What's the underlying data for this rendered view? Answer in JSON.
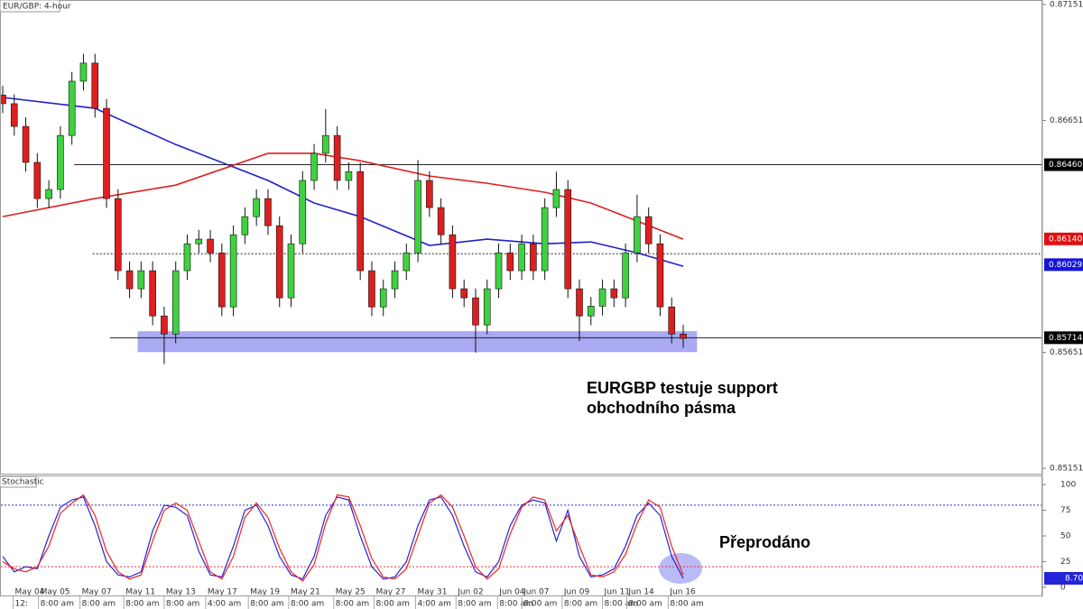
{
  "chart_data": [
    {
      "type": "candlestick",
      "title": "EUR/GBP: 4-hour",
      "open": [
        0.8676,
        0.86723,
        0.86625,
        0.8647,
        0.86314,
        0.86353,
        0.86586,
        0.8682,
        0.86898,
        0.86703,
        0.86314,
        0.86003,
        0.85925,
        0.86003,
        0.85808,
        0.8573,
        0.86003,
        0.86119,
        0.86139,
        0.8608,
        0.85847,
        0.86158,
        0.86236,
        0.86314,
        0.86197,
        0.85886,
        0.86119,
        0.86392,
        0.86509,
        0.86586,
        0.86392,
        0.8643,
        0.86003,
        0.85847,
        0.85925,
        0.86003,
        0.8608,
        0.86392,
        0.86275,
        0.86158,
        0.85925,
        0.85886,
        0.85769,
        0.85925,
        0.8608,
        0.86003,
        0.86119,
        0.86003,
        0.86275,
        0.86353,
        0.85925,
        0.85808,
        0.8585,
        0.85925,
        0.85886,
        0.8608,
        0.86236,
        0.86119,
        0.85847,
        0.8573
      ],
      "high": [
        0.868,
        0.86763,
        0.86665,
        0.8651,
        0.86393,
        0.86626,
        0.8686,
        0.86938,
        0.86938,
        0.86743,
        0.86354,
        0.86043,
        0.86043,
        0.86043,
        0.85848,
        0.86043,
        0.86159,
        0.86179,
        0.86179,
        0.8612,
        0.86198,
        0.86276,
        0.86354,
        0.86354,
        0.86237,
        0.86159,
        0.86432,
        0.86549,
        0.867,
        0.86626,
        0.8647,
        0.8647,
        0.86043,
        0.85965,
        0.86043,
        0.8612,
        0.8648,
        0.86432,
        0.86315,
        0.86198,
        0.85965,
        0.85926,
        0.85965,
        0.8612,
        0.8612,
        0.86159,
        0.86159,
        0.86315,
        0.8643,
        0.86393,
        0.85965,
        0.8589,
        0.85965,
        0.85965,
        0.8612,
        0.8633,
        0.86276,
        0.86159,
        0.85887,
        0.8577
      ],
      "low": [
        0.86683,
        0.86585,
        0.8643,
        0.86274,
        0.86274,
        0.86313,
        0.86546,
        0.8678,
        0.86663,
        0.86274,
        0.85963,
        0.85885,
        0.85885,
        0.85768,
        0.856,
        0.8569,
        0.85963,
        0.86079,
        0.8604,
        0.85807,
        0.85807,
        0.86118,
        0.86196,
        0.86157,
        0.85846,
        0.85846,
        0.86079,
        0.86352,
        0.86469,
        0.86352,
        0.86352,
        0.85963,
        0.85807,
        0.85807,
        0.85885,
        0.85963,
        0.8604,
        0.86235,
        0.86118,
        0.85885,
        0.85846,
        0.8565,
        0.85729,
        0.85885,
        0.85963,
        0.85963,
        0.85963,
        0.85963,
        0.86235,
        0.85885,
        0.857,
        0.85768,
        0.8581,
        0.85846,
        0.85846,
        0.8604,
        0.86079,
        0.85807,
        0.8569,
        0.85671
      ],
      "close": [
        0.86723,
        0.86625,
        0.8647,
        0.86314,
        0.86353,
        0.86586,
        0.8682,
        0.86898,
        0.86703,
        0.86314,
        0.86003,
        0.85925,
        0.86003,
        0.85808,
        0.8573,
        0.86003,
        0.86119,
        0.86139,
        0.8608,
        0.85847,
        0.86158,
        0.86236,
        0.86314,
        0.86197,
        0.85886,
        0.86119,
        0.86392,
        0.86509,
        0.86586,
        0.86392,
        0.8643,
        0.86003,
        0.85847,
        0.85925,
        0.86003,
        0.8608,
        0.86392,
        0.86275,
        0.86158,
        0.85925,
        0.85886,
        0.85769,
        0.85925,
        0.8608,
        0.86003,
        0.86119,
        0.86003,
        0.86275,
        0.86353,
        0.85925,
        0.85808,
        0.8585,
        0.85925,
        0.85886,
        0.8608,
        0.86236,
        0.86119,
        0.85847,
        0.8573,
        0.85711
      ],
      "up_color": "#3fd13f",
      "down_color": "#dd1f1f",
      "ylim": [
        0.85128,
        0.8717
      ],
      "yticks": [
        0.87151,
        0.86651,
        0.85651,
        0.85151
      ],
      "moving_averages": [
        {
          "color": "#1f1fcc",
          "x": [
            0,
            8,
            15,
            23,
            27,
            31,
            37,
            42,
            47,
            51,
            55,
            59
          ],
          "values": [
            0.8675,
            0.86703,
            0.86547,
            0.86392,
            0.86295,
            0.86236,
            0.86112,
            0.86139,
            0.86119,
            0.86127,
            0.8608,
            0.86022
          ]
        },
        {
          "color": "#e01f1f",
          "x": [
            0,
            8,
            15,
            23,
            27,
            31,
            37,
            42,
            47,
            51,
            55,
            59
          ],
          "values": [
            0.86236,
            0.86314,
            0.86372,
            0.86509,
            0.86509,
            0.86477,
            0.86411,
            0.8638,
            0.86341,
            0.86295,
            0.86217,
            0.86139
          ]
        }
      ],
      "levels": [
        {
          "value": 0.8646,
          "style": "solid",
          "from": 6.2
        },
        {
          "value": 0.86076,
          "style": "dotted",
          "from": 7.8
        },
        {
          "value": 0.85714,
          "style": "solid",
          "from": 9.3
        }
      ],
      "support_band": {
        "y": [
          0.85742,
          0.85652
        ],
        "x": [
          11.7,
          60.2
        ],
        "color": "#8c8cf0"
      },
      "price_tags": [
        {
          "value": 0.8646,
          "label": "0.86460",
          "color": "#000000"
        },
        {
          "value": 0.8614,
          "label": "0.86140",
          "color": "#e01010"
        },
        {
          "value": 0.86029,
          "label": "0.86029",
          "color": "#1515d8"
        },
        {
          "value": 0.85714,
          "label": "0.85714",
          "color": "#000000"
        }
      ],
      "annotation": [
        "EURGBP testuje support",
        "obchodního pásma"
      ]
    },
    {
      "type": "line",
      "title": "Stochastic",
      "series": [
        {
          "color": "#2424d8",
          "values": [
            30,
            15,
            20,
            18,
            50,
            78,
            85,
            88,
            60,
            25,
            12,
            10,
            15,
            55,
            80,
            78,
            70,
            35,
            12,
            10,
            40,
            75,
            80,
            60,
            30,
            12,
            8,
            30,
            70,
            88,
            85,
            50,
            20,
            8,
            10,
            25,
            60,
            85,
            88,
            70,
            40,
            15,
            10,
            25,
            60,
            80,
            85,
            82,
            45,
            75,
            30,
            10,
            12,
            18,
            40,
            70,
            82,
            70,
            30,
            8.7
          ]
        },
        {
          "color": "#ee2424",
          "values": [
            25,
            18,
            15,
            20,
            40,
            72,
            82,
            90,
            70,
            35,
            15,
            8,
            12,
            45,
            75,
            82,
            75,
            45,
            15,
            8,
            30,
            68,
            82,
            68,
            38,
            15,
            6,
            22,
            62,
            90,
            88,
            60,
            28,
            10,
            8,
            18,
            50,
            82,
            90,
            78,
            50,
            20,
            8,
            18,
            52,
            78,
            88,
            85,
            55,
            70,
            40,
            12,
            10,
            15,
            32,
            62,
            85,
            78,
            40,
            12
          ]
        }
      ],
      "ylim": [
        -8,
        108
      ],
      "yticks": [
        100,
        75,
        50,
        25,
        0
      ],
      "levels": [
        {
          "value": 80,
          "color": "#3434c8"
        },
        {
          "value": 20,
          "color": "#ee3434"
        }
      ],
      "current_value": {
        "value": 8.7,
        "label": "8.70"
      },
      "annotation": "Přeprodáno",
      "x_labels": [
        {
          "x": 0.9,
          "date": "May 04",
          "time": "12:"
        },
        {
          "x": 3.1,
          "date": "May 05",
          "time": "8:00 am"
        },
        {
          "x": 6.7,
          "date": "May 07",
          "time": "8:00 am"
        },
        {
          "x": 10.5,
          "date": "May 11",
          "time": "8:00 am"
        },
        {
          "x": 14,
          "date": "May 13",
          "time": "8:00 am"
        },
        {
          "x": 17.6,
          "date": "May 17",
          "time": "4:00 am"
        },
        {
          "x": 21.3,
          "date": "May 19",
          "time": "8:00 am"
        },
        {
          "x": 24.8,
          "date": "May 21",
          "time": "8:00 am"
        },
        {
          "x": 28.7,
          "date": "May 25",
          "time": "8:00 am"
        },
        {
          "x": 32.2,
          "date": "May 27",
          "time": "8:00 am"
        },
        {
          "x": 35.8,
          "date": "May 31",
          "time": "4:00 am"
        },
        {
          "x": 39.3,
          "date": "Jun 02",
          "time": "8:00 am"
        },
        {
          "x": 42.9,
          "date": "Jun 04",
          "time": "8:00 am"
        },
        {
          "x": 45,
          "date": "Jun 07",
          "time": "8:00 am"
        },
        {
          "x": 48.5,
          "date": "Jun 09",
          "time": "8:00 am"
        },
        {
          "x": 52,
          "date": "Jun 11",
          "time": "8:00 am"
        },
        {
          "x": 54.1,
          "date": "Jun 14",
          "time": "8:00 am"
        },
        {
          "x": 57.7,
          "date": "Jun 16",
          "time": "8:00 am"
        }
      ]
    }
  ]
}
